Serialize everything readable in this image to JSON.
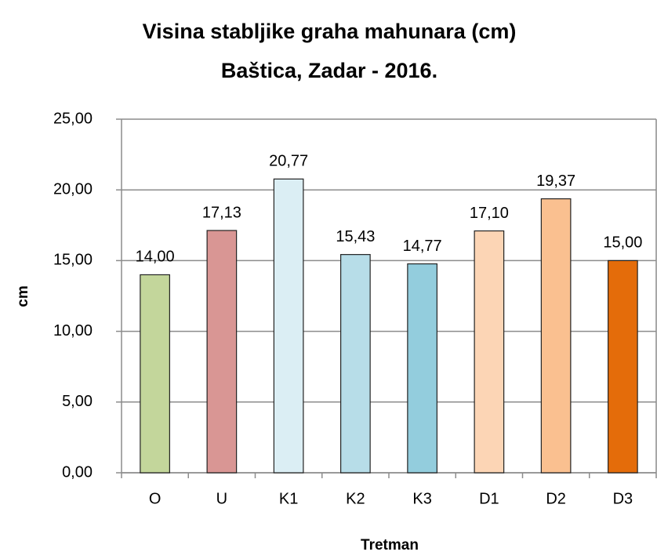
{
  "chart_data": {
    "type": "bar",
    "title": "Visina stabljike graha mahunara (cm)",
    "subtitle": "Baštica, Zadar - 2016.",
    "x_label": "Tretman",
    "y_label": "cm",
    "categories": [
      "O",
      "U",
      "K1",
      "K2",
      "K3",
      "D1",
      "D2",
      "D3"
    ],
    "values": [
      14.0,
      17.13,
      20.77,
      15.43,
      14.77,
      17.1,
      19.37,
      15.0
    ],
    "value_labels": [
      "14,00",
      "17,13",
      "20,77",
      "15,43",
      "14,77",
      "17,10",
      "19,37",
      "15,00"
    ],
    "colors": [
      "#c3d69b",
      "#d99694",
      "#dbeef4",
      "#b7dde8",
      "#93cddd",
      "#fcd5b5",
      "#fac090",
      "#e46c0a"
    ],
    "ylim": [
      0,
      25
    ],
    "yticks": [
      {
        "value": 0,
        "label": "0,00"
      },
      {
        "value": 5,
        "label": "5,00"
      },
      {
        "value": 10,
        "label": "10,00"
      },
      {
        "value": 15,
        "label": "15,00"
      },
      {
        "value": 20,
        "label": "20,00"
      },
      {
        "value": 25,
        "label": "25,00"
      }
    ],
    "grid": true
  }
}
